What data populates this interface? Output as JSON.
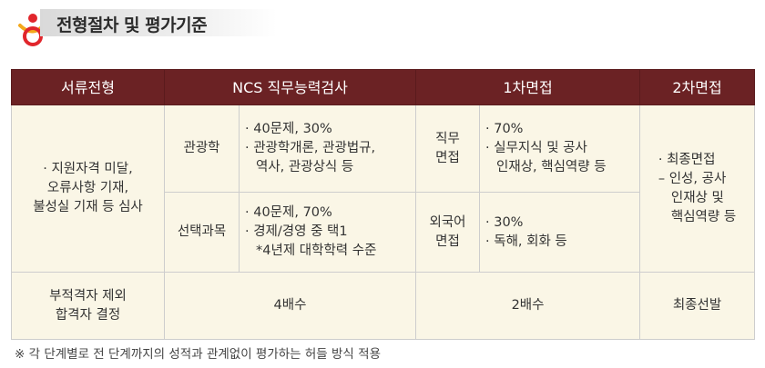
{
  "header": {
    "title": "전형절차 및 평가기준",
    "logo_icon": "person-mascot-icon"
  },
  "table": {
    "headers": [
      "서류전형",
      "NCS 직무능력검사",
      "1차면접",
      "2차면접"
    ],
    "document": {
      "text": [
        "· 지원자격 미달,",
        "오류사항 기재,",
        "불성실 기재 등 심사"
      ]
    },
    "ncs": [
      {
        "subject": "관광학",
        "details": [
          "· 40문제, 30%",
          "· 관광학개론, 관광법규,",
          "역사, 관광상식 등"
        ]
      },
      {
        "subject": "선택과목",
        "details": [
          "· 40문제, 70%",
          "· 경제/경영 중 택1",
          "*4년제 대학학력 수준"
        ]
      }
    ],
    "interview1": [
      {
        "label": [
          "직무",
          "면접"
        ],
        "details": [
          "· 70%",
          "· 실무지식 및 공사",
          "인재상, 핵심역량 등"
        ]
      },
      {
        "label": [
          "외국어",
          "면접"
        ],
        "details": [
          "· 30%",
          "· 독해, 회화 등"
        ]
      }
    ],
    "interview2": {
      "details": [
        "· 최종면접",
        "– 인성, 공사",
        "인재상 및",
        "핵심역량 등"
      ]
    },
    "footer": {
      "document": [
        "부적격자 제외",
        "합격자 결정"
      ],
      "ncs": "4배수",
      "interview1": "2배수",
      "interview2": "최종선발"
    }
  },
  "note": "※ 각 단계별로 전 단계까지의 성적과 관계없이 평가하는 허들 방식 적용",
  "colors": {
    "header_bg": "#6b2224",
    "cell_bg": "#faf6e6",
    "border": "#cdcdcd"
  }
}
